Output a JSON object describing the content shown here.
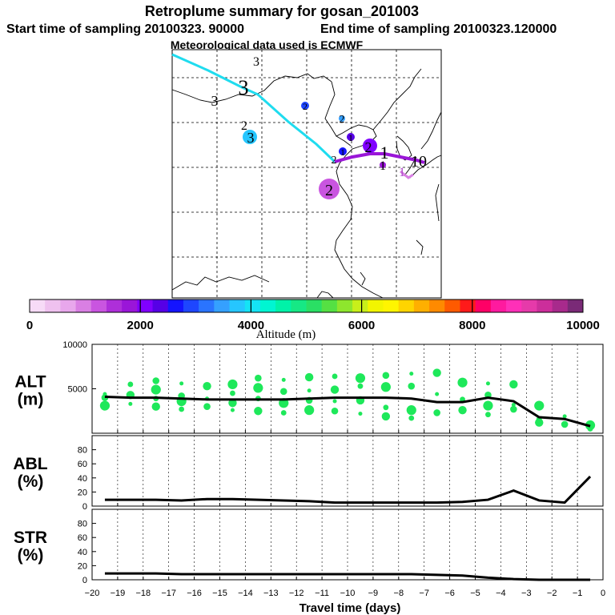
{
  "header": {
    "title": "Retroplume summary for gosan_201003",
    "start_label": "Start time of sampling 20100323. 90000",
    "end_label": "End time of sampling 20100323.120000",
    "met_label": "Meteorological data used is ECMWF"
  },
  "colors": {
    "trajectory_cyan": "#1fdcef",
    "trajectory_purple": "#9a16d8",
    "dots_green": "#1ee85a",
    "line": "#000000"
  },
  "map_panel": {
    "trajectory_labels": [
      "3",
      "3",
      "3",
      "3",
      "2",
      "2",
      "2",
      "2",
      "2",
      "2",
      "1",
      "1",
      "1",
      "1",
      "1",
      "10"
    ]
  },
  "colorbar": {
    "tick_labels": [
      "0",
      "2000",
      "4000",
      "6000",
      "8000",
      "10000"
    ],
    "tick_values": [
      0,
      2000,
      4000,
      6000,
      8000,
      10000
    ],
    "label": "Altitude (m)",
    "colors": [
      "#f7dbf7",
      "#efc1ef",
      "#e8a7ec",
      "#d97fe3",
      "#c955e0",
      "#ae2fd9",
      "#9a16d8",
      "#8000ff",
      "#5600e6",
      "#1414ff",
      "#1e46ff",
      "#2a74ff",
      "#35a0ff",
      "#26c6ff",
      "#15e3f5",
      "#00f5d2",
      "#00f2a8",
      "#16e885",
      "#2adf64",
      "#55e043",
      "#8ee62d",
      "#c8ef1a",
      "#f2f500",
      "#fff500",
      "#ffd400",
      "#ffaf00",
      "#ff8a00",
      "#ff5a00",
      "#ff1a1a",
      "#ff0066",
      "#ff1a9f",
      "#ff30b8",
      "#e63aaa",
      "#cc2e9b",
      "#a82a8c",
      "#7a2a77"
    ]
  },
  "chart_data": [
    {
      "id": "alt",
      "type": "line",
      "title": "ALT",
      "ylabel": "ALT (m)",
      "ylabel_lines": [
        "ALT",
        "(m)"
      ],
      "xlabel": "Travel time (days)",
      "xlim": [
        -20,
        0
      ],
      "ylim": [
        0,
        10000
      ],
      "yticks": [
        0,
        5000,
        10000
      ],
      "ytick_labels": [
        "5000",
        "10000"
      ],
      "x": [
        -19.5,
        -18.5,
        -17.5,
        -16.5,
        -15.5,
        -14.5,
        -13.5,
        -12.5,
        -11.5,
        -10.5,
        -9.5,
        -8.5,
        -7.5,
        -6.5,
        -5.5,
        -4.5,
        -3.5,
        -2.5,
        -1.5,
        -0.5
      ],
      "values": [
        4100,
        4000,
        4000,
        3900,
        3800,
        3800,
        3800,
        3800,
        3900,
        4000,
        4000,
        4000,
        3900,
        3500,
        3500,
        4000,
        3600,
        1800,
        1600,
        800
      ],
      "scatter": [
        [
          -19.5,
          4400
        ],
        [
          -19.5,
          4000
        ],
        [
          -19.5,
          3100
        ],
        [
          -18.5,
          5500
        ],
        [
          -18.5,
          4300
        ],
        [
          -18.5,
          3300
        ],
        [
          -17.5,
          5900
        ],
        [
          -17.5,
          4900
        ],
        [
          -17.5,
          3900
        ],
        [
          -17.5,
          3000
        ],
        [
          -16.5,
          5600
        ],
        [
          -16.5,
          4200
        ],
        [
          -16.5,
          3600
        ],
        [
          -16.5,
          2700
        ],
        [
          -15.5,
          5300
        ],
        [
          -15.5,
          3900
        ],
        [
          -15.5,
          3000
        ],
        [
          -14.5,
          5500
        ],
        [
          -14.5,
          4500
        ],
        [
          -14.5,
          3400
        ],
        [
          -14.5,
          2600
        ],
        [
          -13.5,
          6200
        ],
        [
          -13.5,
          5100
        ],
        [
          -13.5,
          3900
        ],
        [
          -13.5,
          2500
        ],
        [
          -12.5,
          6000
        ],
        [
          -12.5,
          4700
        ],
        [
          -12.5,
          3400
        ],
        [
          -12.5,
          2300
        ],
        [
          -11.5,
          6300
        ],
        [
          -11.5,
          4800
        ],
        [
          -11.5,
          3700
        ],
        [
          -11.5,
          2600
        ],
        [
          -10.5,
          6400
        ],
        [
          -10.5,
          4900
        ],
        [
          -10.5,
          3600
        ],
        [
          -10.5,
          2500
        ],
        [
          -9.5,
          6200
        ],
        [
          -9.5,
          5300
        ],
        [
          -9.5,
          3700
        ],
        [
          -9.5,
          2200
        ],
        [
          -8.5,
          6500
        ],
        [
          -8.5,
          5200
        ],
        [
          -8.5,
          2900
        ],
        [
          -8.5,
          1900
        ],
        [
          -7.5,
          6700
        ],
        [
          -7.5,
          5300
        ],
        [
          -7.5,
          2600
        ],
        [
          -7.5,
          1700
        ],
        [
          -6.5,
          6800
        ],
        [
          -6.5,
          4400
        ],
        [
          -6.5,
          2300
        ],
        [
          -5.5,
          5700
        ],
        [
          -5.5,
          3800
        ],
        [
          -5.5,
          2600
        ],
        [
          -4.5,
          5600
        ],
        [
          -4.5,
          4300
        ],
        [
          -4.5,
          3100
        ],
        [
          -4.5,
          2100
        ],
        [
          -3.5,
          5500
        ],
        [
          -3.5,
          3200
        ],
        [
          -3.5,
          2700
        ],
        [
          -2.5,
          3100
        ],
        [
          -2.5,
          1600
        ],
        [
          -2.5,
          1200
        ],
        [
          -1.5,
          1900
        ],
        [
          -1.5,
          1000
        ],
        [
          -0.5,
          900
        ],
        [
          -0.5,
          500
        ]
      ]
    },
    {
      "id": "abl",
      "type": "line",
      "title": "ABL",
      "ylabel": "ABL (%)",
      "ylabel_lines": [
        "ABL",
        "(%)"
      ],
      "xlabel": "Travel time (days)",
      "xlim": [
        -20,
        0
      ],
      "ylim": [
        0,
        100
      ],
      "yticks": [
        0,
        20,
        40,
        60,
        80
      ],
      "ytick_labels": [
        "0",
        "20",
        "40",
        "60",
        "80"
      ],
      "x": [
        -19.5,
        -18.5,
        -17.5,
        -16.5,
        -15.5,
        -14.5,
        -13.5,
        -12.5,
        -11.5,
        -10.5,
        -9.5,
        -8.5,
        -7.5,
        -6.5,
        -5.5,
        -4.5,
        -3.5,
        -2.5,
        -1.5,
        -0.5
      ],
      "values": [
        9,
        9,
        9,
        8,
        10,
        10,
        9,
        8,
        7,
        5,
        5,
        5,
        5,
        5,
        6,
        9,
        22,
        8,
        5,
        42
      ]
    },
    {
      "id": "str",
      "type": "line",
      "title": "STR",
      "ylabel": "STR (%)",
      "ylabel_lines": [
        "STR",
        "(%)"
      ],
      "xlabel": "Travel time (days)",
      "xlim": [
        -20,
        0
      ],
      "ylim": [
        0,
        100
      ],
      "yticks": [
        0,
        20,
        40,
        60,
        80
      ],
      "ytick_labels": [
        "0",
        "20",
        "40",
        "60",
        "80"
      ],
      "x": [
        -19.5,
        -18.5,
        -17.5,
        -16.5,
        -15.5,
        -14.5,
        -13.5,
        -12.5,
        -11.5,
        -10.5,
        -9.5,
        -8.5,
        -7.5,
        -6.5,
        -5.5,
        -4.5,
        -3.5,
        -2.5,
        -1.5,
        -0.5
      ],
      "values": [
        9,
        9,
        9,
        8,
        8,
        8,
        8,
        8,
        8,
        8,
        8,
        8,
        8,
        7,
        6,
        3,
        1,
        0,
        0,
        0
      ]
    }
  ],
  "xaxis": {
    "label": "Travel time (days)",
    "tick_labels": [
      "−20",
      "−19",
      "−18",
      "−17",
      "−16",
      "−15",
      "−14",
      "−13",
      "−12",
      "−11",
      "−10",
      "−9",
      "−8",
      "−7",
      "−6",
      "−5",
      "−4",
      "−3",
      "−2",
      "−1",
      "0"
    ],
    "tick_values": [
      -20,
      -19,
      -18,
      -17,
      -16,
      -15,
      -14,
      -13,
      -12,
      -11,
      -10,
      -9,
      -8,
      -7,
      -6,
      -5,
      -4,
      -3,
      -2,
      -1,
      0
    ]
  }
}
